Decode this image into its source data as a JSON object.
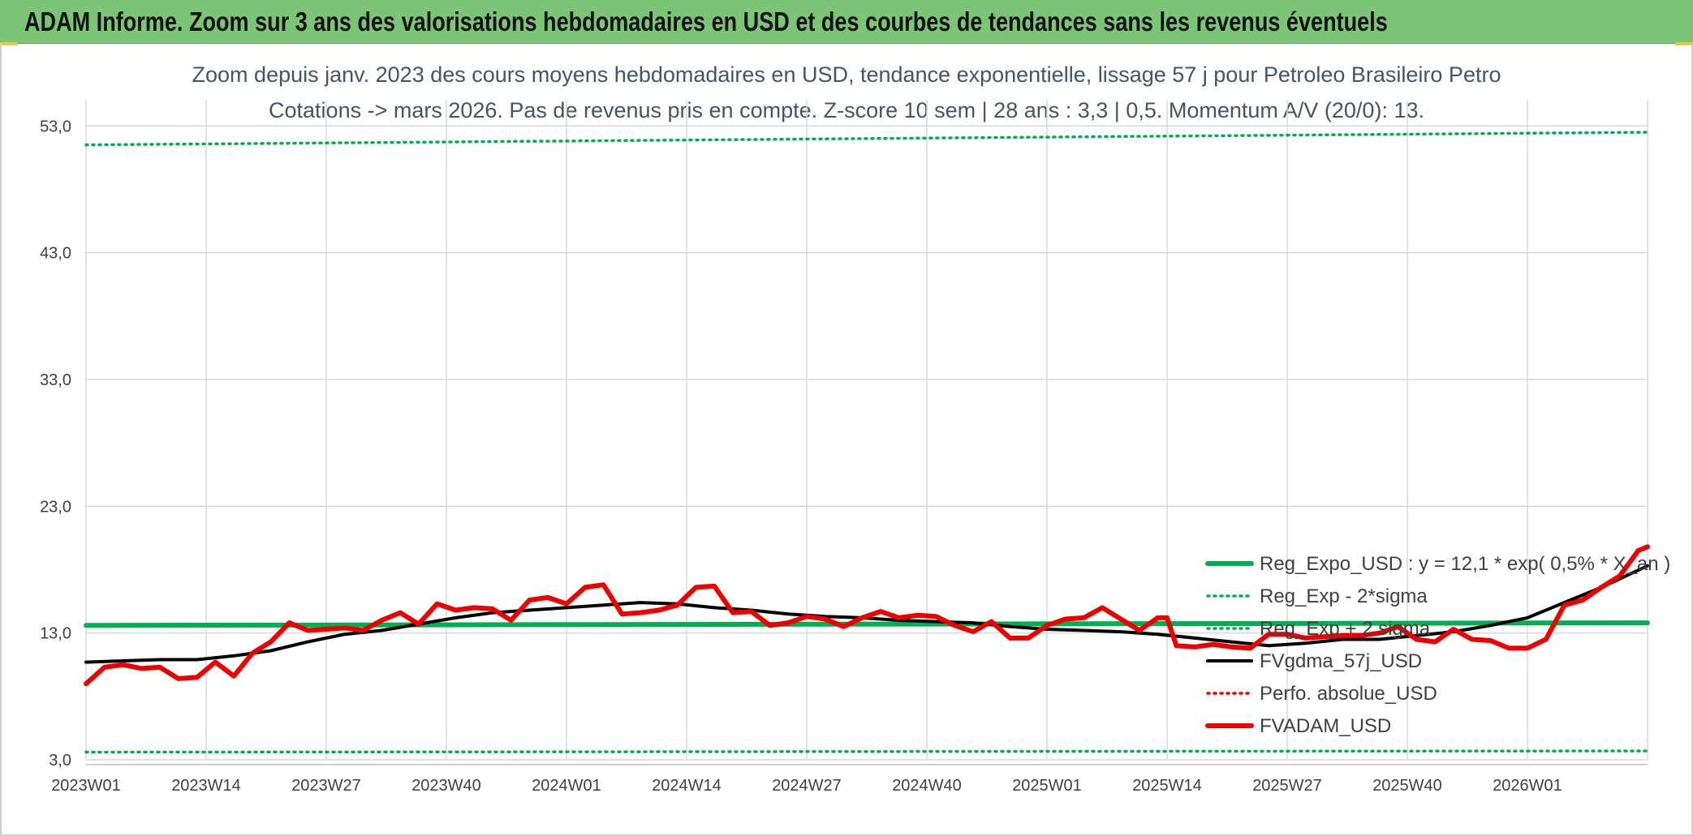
{
  "banner": {
    "title": "ADAM Informe. Zoom sur 3 ans des valorisations hebdomadaires en USD et des courbes de tendances sans les revenus éventuels"
  },
  "colors": {
    "banner_bg": "#7cc576",
    "green": "#00b050",
    "red": "#ee0000",
    "black": "#000000",
    "grid": "#d9d9d9"
  },
  "chart_data": {
    "type": "line",
    "title_line1": "Zoom depuis janv. 2023 des cours moyens hebdomadaires en USD, tendance exponentielle, lissage 57 j pour Petroleo Brasileiro Petro",
    "title_line2": "Cotations -> mars 2026. Pas de revenus pris en compte. Z-score 10 sem | 28 ans : 3,3 | 0,5. Momentum A/V (20/0): 13.",
    "ylim": [
      3,
      55
    ],
    "y_ticks": [
      "3,0",
      "13,0",
      "23,0",
      "33,0",
      "43,0",
      "53,0"
    ],
    "x_tick_labels": [
      "2023W01",
      "2023W14",
      "2023W27",
      "2023W40",
      "2024W01",
      "2024W14",
      "2024W27",
      "2024W40",
      "2025W01",
      "2025W14",
      "2025W27",
      "2025W40",
      "2026W01"
    ],
    "x_ticks_week_index": [
      0,
      13,
      26,
      39,
      52,
      65,
      78,
      91,
      104,
      117,
      130,
      143,
      156
    ],
    "x_last_week_index": 169,
    "grid": "on",
    "legend_position": "right",
    "series": [
      {
        "name": "Reg_Expo_USD : y = 12,1 * exp( 0,5% *  X_an )",
        "style": "solid-thick",
        "color": "#00b050",
        "x": [
          0,
          169
        ],
        "values": [
          13.6,
          13.8
        ]
      },
      {
        "name": "Reg_Exp - 2*sigma",
        "style": "dotted",
        "color": "#00b050",
        "x": [
          0,
          169
        ],
        "values": [
          3.6,
          3.7
        ]
      },
      {
        "name": "Reg_Exp + 2 sigma",
        "style": "dotted",
        "color": "#00b050",
        "x": [
          0,
          169
        ],
        "values": [
          51.5,
          52.5
        ]
      },
      {
        "name": "FVgdma_57j_USD",
        "style": "solid-medium",
        "color": "#000000",
        "x": [
          0,
          4,
          8,
          12,
          16,
          20,
          24,
          28,
          32,
          36,
          40,
          44,
          48,
          52,
          56,
          60,
          64,
          68,
          72,
          76,
          80,
          84,
          88,
          92,
          96,
          100,
          104,
          108,
          112,
          116,
          120,
          124,
          128,
          132,
          136,
          140,
          144,
          148,
          152,
          156,
          160,
          164,
          169
        ],
        "values": [
          10.7,
          10.8,
          10.9,
          10.9,
          11.2,
          11.6,
          12.3,
          12.9,
          13.2,
          13.7,
          14.2,
          14.6,
          14.8,
          15.0,
          15.2,
          15.4,
          15.3,
          15.0,
          14.8,
          14.5,
          14.3,
          14.2,
          14.0,
          13.9,
          13.8,
          13.5,
          13.3,
          13.2,
          13.1,
          12.9,
          12.6,
          12.3,
          12.0,
          12.2,
          12.5,
          12.5,
          12.8,
          13.1,
          13.6,
          14.2,
          15.4,
          16.6,
          18.3
        ]
      },
      {
        "name": "Perfo. absolue_USD",
        "style": "dotted",
        "color": "#ee0000",
        "x": [],
        "values": []
      },
      {
        "name": "FVADAM_USD",
        "style": "solid-thick",
        "color": "#ee0000",
        "x": [
          0,
          2,
          4,
          6,
          8,
          10,
          12,
          14,
          16,
          18,
          20,
          22,
          24,
          26,
          28,
          30,
          32,
          34,
          36,
          38,
          40,
          42,
          44,
          46,
          48,
          50,
          52,
          54,
          56,
          58,
          60,
          62,
          64,
          66,
          68,
          70,
          72,
          74,
          76,
          78,
          80,
          82,
          84,
          86,
          88,
          90,
          92,
          94,
          96,
          98,
          100,
          102,
          104,
          106,
          108,
          110,
          112,
          114,
          116,
          117,
          118,
          120,
          122,
          124,
          126,
          128,
          130,
          132,
          134,
          136,
          138,
          140,
          142,
          144,
          146,
          148,
          150,
          152,
          154,
          156,
          158,
          160,
          162,
          164,
          166,
          168,
          169
        ],
        "values": [
          9.0,
          10.3,
          10.5,
          10.2,
          10.3,
          9.4,
          9.5,
          10.7,
          9.6,
          11.4,
          12.3,
          13.8,
          13.2,
          13.3,
          13.4,
          13.2,
          14.0,
          14.6,
          13.7,
          15.3,
          14.8,
          15.0,
          14.9,
          14.0,
          15.6,
          15.8,
          15.3,
          16.6,
          16.8,
          14.5,
          14.6,
          14.8,
          15.2,
          16.6,
          16.7,
          14.6,
          14.7,
          13.6,
          13.8,
          14.3,
          14.1,
          13.5,
          14.2,
          14.7,
          14.2,
          14.4,
          14.3,
          13.6,
          13.1,
          13.9,
          12.6,
          12.6,
          13.6,
          14.1,
          14.2,
          15.0,
          14.1,
          13.2,
          14.2,
          14.2,
          12.0,
          11.9,
          12.1,
          11.9,
          11.8,
          12.9,
          12.9,
          12.6,
          12.7,
          12.8,
          12.8,
          13.0,
          13.5,
          12.5,
          12.3,
          13.3,
          12.5,
          12.4,
          11.8,
          11.8,
          12.5,
          15.2,
          15.6,
          16.6,
          17.5,
          19.5,
          19.8
        ]
      }
    ]
  }
}
